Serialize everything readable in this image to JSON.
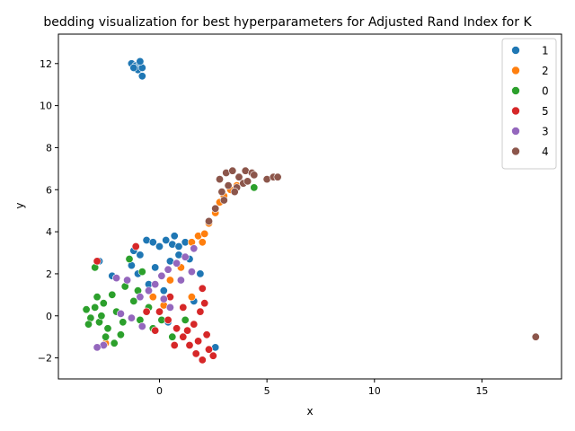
{
  "chart_data": {
    "type": "scatter",
    "title": "bedding visualization for best hyperparameters for Adjusted Rand Index for K",
    "xlabel": "x",
    "ylabel": "y",
    "xlim": [
      -4.7,
      18.7
    ],
    "ylim": [
      -3.0,
      13.4
    ],
    "xticks": [
      0,
      5,
      10,
      15
    ],
    "yticks": [
      -2,
      0,
      2,
      4,
      6,
      8,
      10,
      12
    ],
    "grid": false,
    "legend_position": "top-right",
    "series": [
      {
        "name": "1",
        "color": "#1f77b4",
        "points": [
          [
            -1.3,
            12.0
          ],
          [
            -1.1,
            11.9
          ],
          [
            -0.9,
            12.0
          ],
          [
            -1.0,
            11.7
          ],
          [
            -0.8,
            11.8
          ],
          [
            -1.2,
            11.8
          ],
          [
            -0.8,
            11.4
          ],
          [
            -0.9,
            12.1
          ],
          [
            -0.6,
            3.6
          ],
          [
            -0.3,
            3.5
          ],
          [
            0.0,
            3.3
          ],
          [
            0.3,
            3.6
          ],
          [
            0.6,
            3.4
          ],
          [
            0.9,
            3.3
          ],
          [
            1.2,
            3.5
          ],
          [
            -1.2,
            3.1
          ],
          [
            -0.9,
            2.9
          ],
          [
            -1.3,
            2.4
          ],
          [
            -1.0,
            2.0
          ],
          [
            -0.5,
            1.5
          ],
          [
            0.2,
            1.2
          ],
          [
            0.5,
            2.6
          ],
          [
            0.9,
            2.9
          ],
          [
            1.4,
            2.7
          ],
          [
            -2.8,
            2.6
          ],
          [
            1.6,
            0.7
          ],
          [
            2.6,
            -1.5
          ],
          [
            -2.2,
            1.9
          ],
          [
            0.4,
            -0.3
          ],
          [
            1.9,
            2.0
          ],
          [
            -0.2,
            2.3
          ],
          [
            0.7,
            3.8
          ]
        ]
      },
      {
        "name": "2",
        "color": "#ff7f0e",
        "points": [
          [
            1.5,
            3.5
          ],
          [
            1.8,
            3.8
          ],
          [
            2.1,
            3.9
          ],
          [
            2.3,
            4.4
          ],
          [
            2.6,
            4.9
          ],
          [
            2.8,
            5.4
          ],
          [
            3.0,
            5.7
          ],
          [
            3.3,
            6.0
          ],
          [
            3.6,
            6.2
          ],
          [
            2.0,
            3.5
          ],
          [
            0.5,
            1.7
          ],
          [
            1.0,
            2.3
          ],
          [
            -0.3,
            0.9
          ],
          [
            0.2,
            0.5
          ],
          [
            1.5,
            0.9
          ],
          [
            -2.5,
            -1.3
          ]
        ]
      },
      {
        "name": "0",
        "color": "#2ca02c",
        "points": [
          [
            -3.4,
            0.3
          ],
          [
            -3.2,
            -0.1
          ],
          [
            -3.0,
            0.4
          ],
          [
            -2.8,
            -0.3
          ],
          [
            -2.6,
            0.6
          ],
          [
            -2.4,
            -0.6
          ],
          [
            -2.2,
            1.0
          ],
          [
            -2.0,
            0.2
          ],
          [
            -1.8,
            -0.9
          ],
          [
            -3.3,
            -0.4
          ],
          [
            -2.9,
            0.9
          ],
          [
            -2.5,
            -1.0
          ],
          [
            -1.6,
            1.4
          ],
          [
            -1.2,
            0.7
          ],
          [
            -0.8,
            2.1
          ],
          [
            -1.4,
            2.7
          ],
          [
            -0.5,
            0.4
          ],
          [
            -3.0,
            2.3
          ],
          [
            -2.1,
            -1.3
          ],
          [
            -1.7,
            -0.3
          ],
          [
            0.6,
            -1.0
          ],
          [
            1.2,
            -0.2
          ],
          [
            4.4,
            6.1
          ],
          [
            -0.3,
            -0.6
          ],
          [
            0.1,
            -0.2
          ],
          [
            -2.7,
            0.0
          ],
          [
            -1.0,
            1.2
          ],
          [
            -0.9,
            -0.2
          ]
        ]
      },
      {
        "name": "5",
        "color": "#d62728",
        "points": [
          [
            0.0,
            0.2
          ],
          [
            0.4,
            -0.2
          ],
          [
            0.8,
            -0.6
          ],
          [
            1.1,
            -1.0
          ],
          [
            1.4,
            -1.4
          ],
          [
            1.7,
            -1.8
          ],
          [
            2.0,
            -2.1
          ],
          [
            2.3,
            -1.6
          ],
          [
            2.5,
            -1.9
          ],
          [
            1.6,
            -0.4
          ],
          [
            1.9,
            0.2
          ],
          [
            2.1,
            0.6
          ],
          [
            2.0,
            1.3
          ],
          [
            1.1,
            0.4
          ],
          [
            0.7,
            -1.4
          ],
          [
            -0.6,
            0.2
          ],
          [
            -0.2,
            -0.7
          ],
          [
            -2.9,
            2.6
          ],
          [
            -1.1,
            3.3
          ],
          [
            0.5,
            0.9
          ],
          [
            1.8,
            -1.2
          ],
          [
            1.3,
            -0.7
          ],
          [
            2.2,
            -0.9
          ]
        ]
      },
      {
        "name": "3",
        "color": "#9467bd",
        "points": [
          [
            -0.9,
            0.9
          ],
          [
            -0.5,
            1.2
          ],
          [
            -0.2,
            1.5
          ],
          [
            0.1,
            1.9
          ],
          [
            0.4,
            2.2
          ],
          [
            0.8,
            2.5
          ],
          [
            1.2,
            2.8
          ],
          [
            1.6,
            3.2
          ],
          [
            -1.5,
            1.7
          ],
          [
            -2.0,
            1.8
          ],
          [
            -2.6,
            -1.4
          ],
          [
            -2.9,
            -1.5
          ],
          [
            0.5,
            0.4
          ],
          [
            1.0,
            1.7
          ],
          [
            1.5,
            2.1
          ],
          [
            -1.8,
            0.1
          ],
          [
            -1.3,
            -0.1
          ],
          [
            0.2,
            0.8
          ],
          [
            -0.8,
            -0.5
          ]
        ]
      },
      {
        "name": "4",
        "color": "#8c564b",
        "points": [
          [
            2.8,
            6.5
          ],
          [
            3.1,
            6.8
          ],
          [
            3.4,
            6.9
          ],
          [
            3.7,
            6.6
          ],
          [
            4.0,
            6.9
          ],
          [
            4.3,
            6.8
          ],
          [
            3.2,
            6.2
          ],
          [
            3.6,
            6.1
          ],
          [
            3.9,
            6.3
          ],
          [
            2.9,
            5.9
          ],
          [
            3.5,
            5.9
          ],
          [
            4.1,
            6.4
          ],
          [
            4.4,
            6.7
          ],
          [
            5.0,
            6.5
          ],
          [
            5.3,
            6.6
          ],
          [
            5.5,
            6.6
          ],
          [
            2.3,
            4.5
          ],
          [
            2.6,
            5.1
          ],
          [
            3.0,
            5.5
          ],
          [
            17.5,
            -1.0
          ]
        ]
      }
    ]
  }
}
